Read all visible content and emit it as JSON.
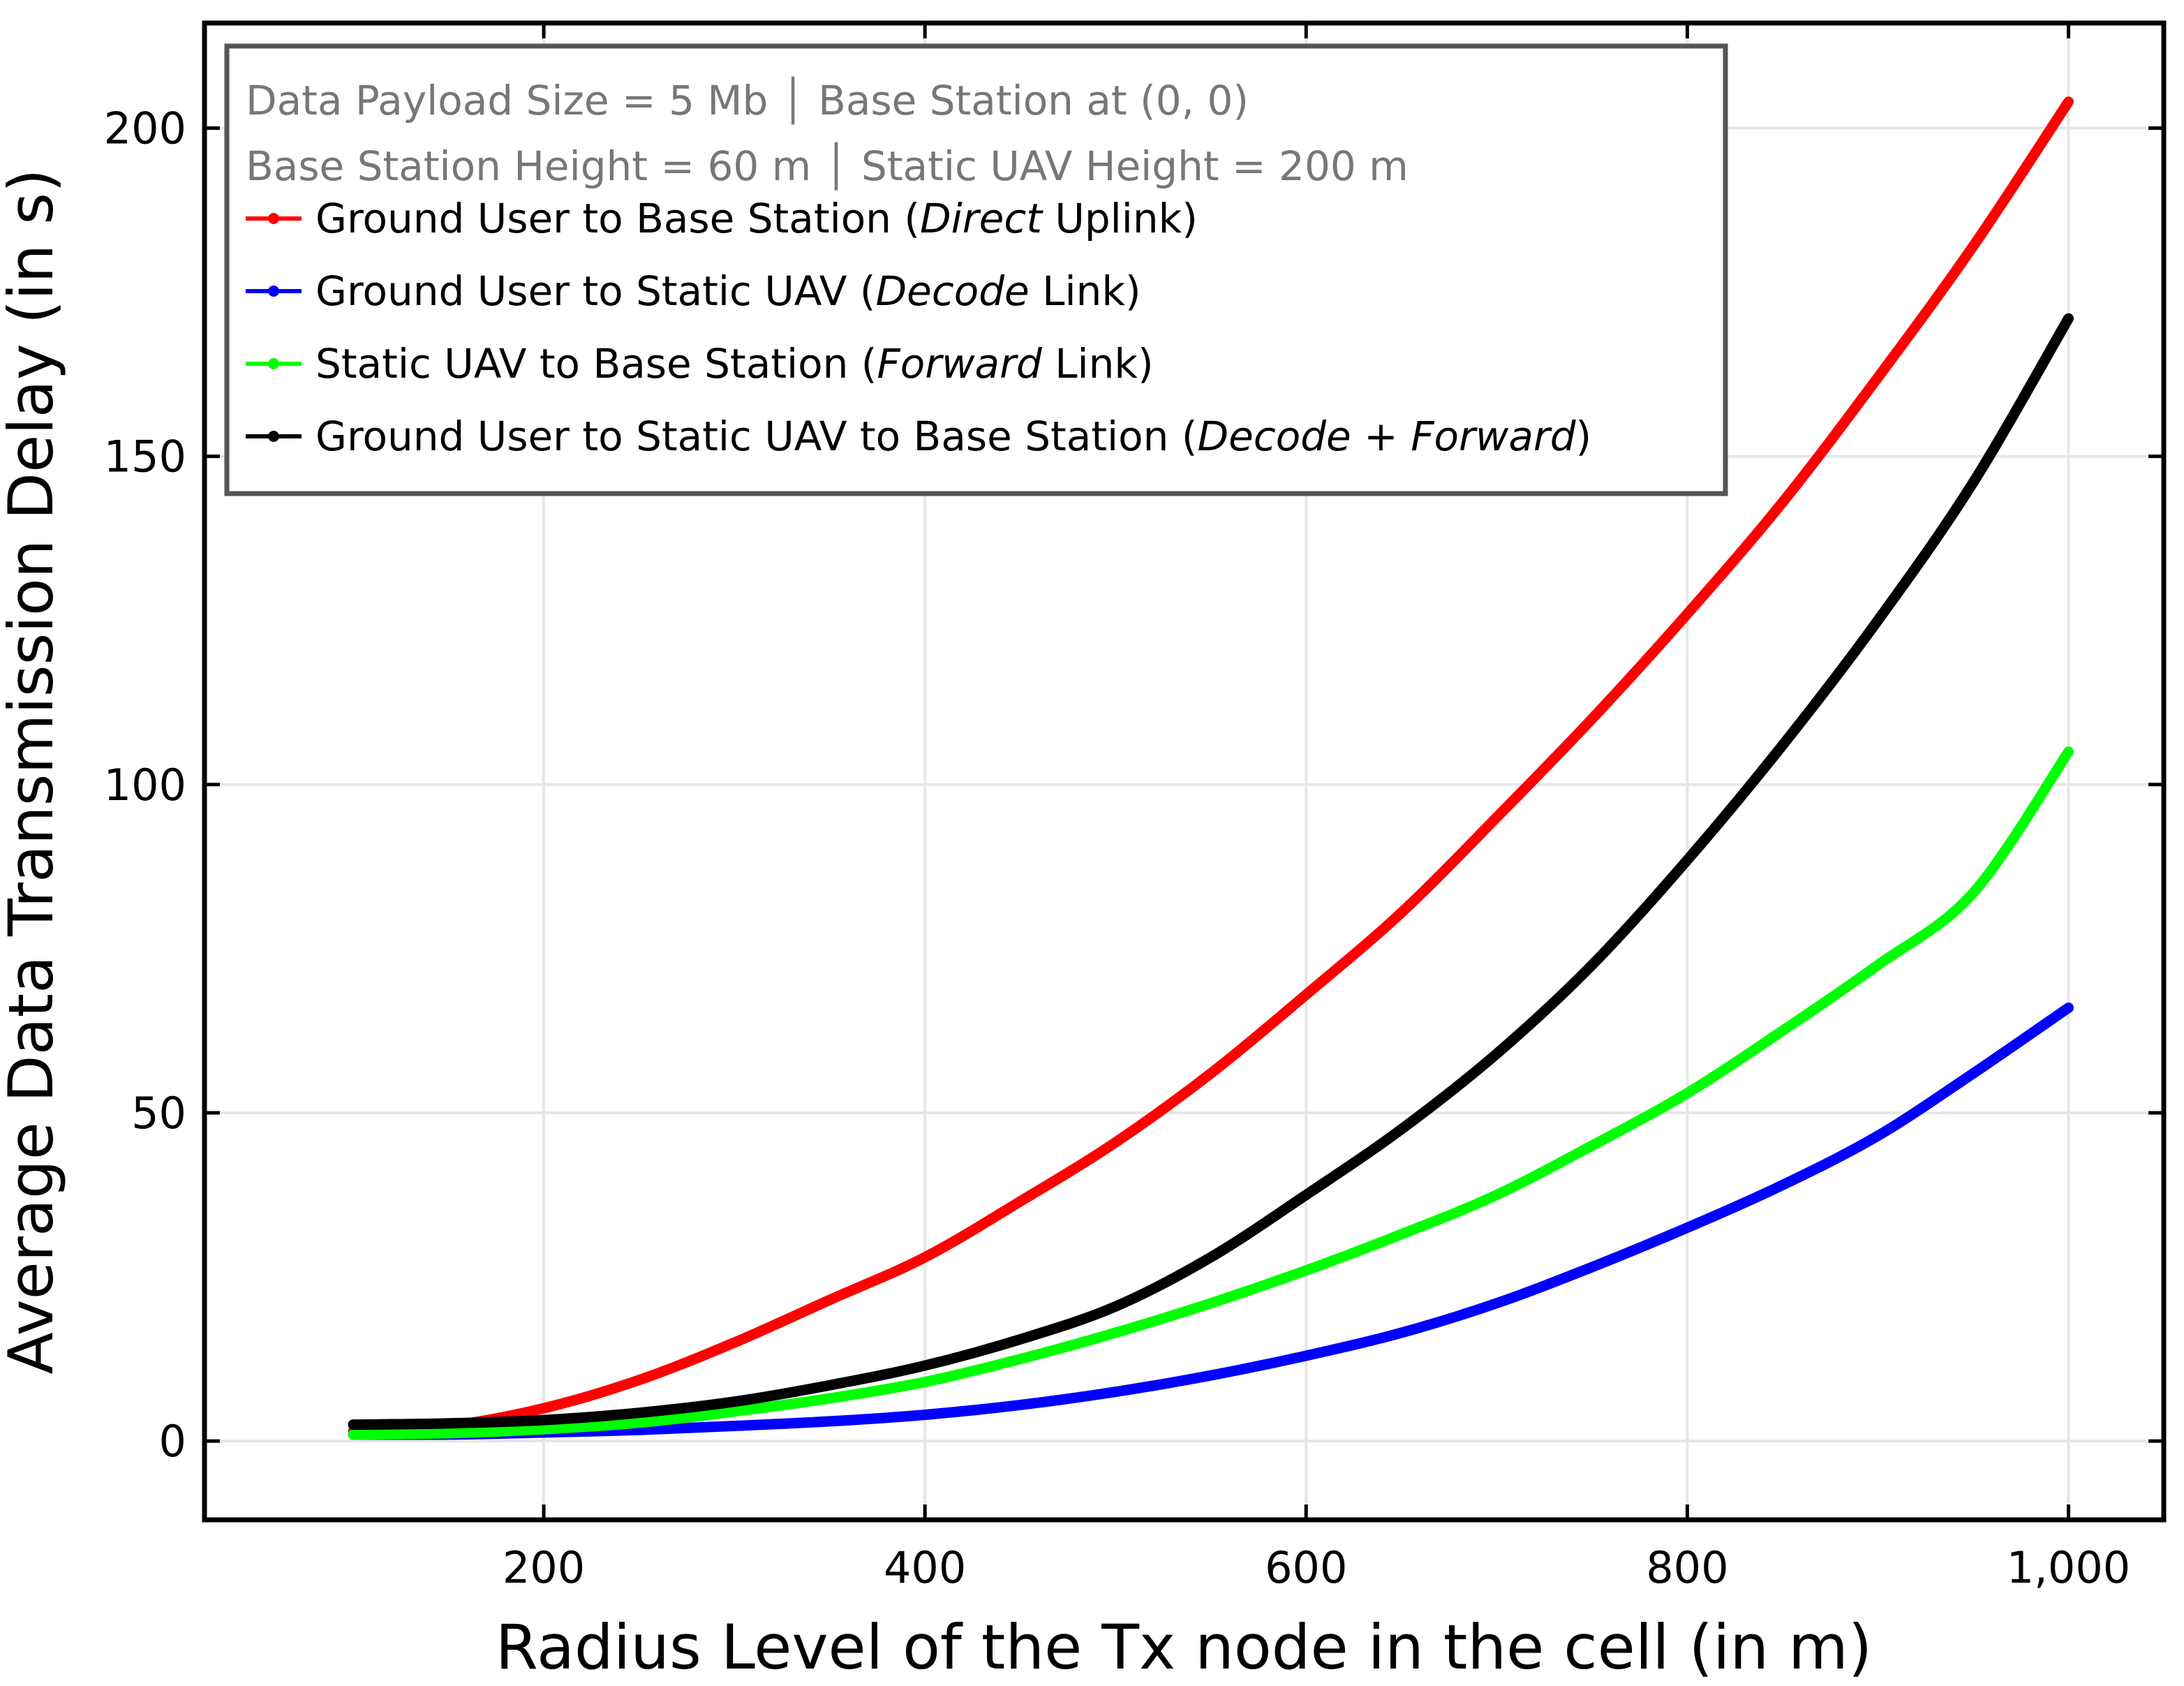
{
  "chart_data": {
    "type": "line",
    "xlabel": "Radius Level of the Tx node in the cell (in m)",
    "ylabel": "Average Data Transmission Delay (in s)",
    "xlim": [
      22,
      1050
    ],
    "ylim": [
      -12,
      216
    ],
    "xticks": [
      200,
      400,
      600,
      800,
      1000
    ],
    "xtick_labels": [
      "200",
      "400",
      "600",
      "800",
      "1,000"
    ],
    "yticks": [
      0,
      50,
      100,
      150,
      200
    ],
    "ytick_labels": [
      "0",
      "50",
      "100",
      "150",
      "200"
    ],
    "grid": true,
    "legend_position": "top-left",
    "legend_notes": [
      "Data Payload Size = 5 Mb │ Base Station at (0, 0)",
      "Base Station Height = 60 m │ Static UAV Height = 200 m"
    ],
    "x": [
      100,
      150,
      200,
      250,
      300,
      350,
      400,
      450,
      500,
      550,
      600,
      650,
      700,
      750,
      800,
      850,
      900,
      950,
      1000
    ],
    "series": [
      {
        "name_parts": [
          {
            "t": "Ground User to Base Station ("
          },
          {
            "t": "Direct",
            "i": true
          },
          {
            "t": " Uplink)"
          }
        ],
        "color": "#ff0000",
        "values": [
          1.5,
          2.3,
          5,
          9.3,
          15,
          21.5,
          28,
          36.5,
          45.5,
          56,
          68,
          80.5,
          95,
          110,
          126,
          143,
          162,
          182,
          204
        ]
      },
      {
        "name_parts": [
          {
            "t": "Ground User to Static UAV ("
          },
          {
            "t": "Decode",
            "i": true
          },
          {
            "t": " Link)"
          }
        ],
        "color": "#0000ff",
        "values": [
          1,
          1,
          1.3,
          1.7,
          2.3,
          3,
          4,
          5.5,
          7.5,
          10,
          13,
          16.5,
          21,
          26.5,
          32.5,
          39,
          46.5,
          56,
          66
        ]
      },
      {
        "name_parts": [
          {
            "t": "Static UAV to Base Station ("
          },
          {
            "t": "Forward",
            "i": true
          },
          {
            "t": " Link)"
          }
        ],
        "color": "#00ff00",
        "values": [
          1,
          1.2,
          1.8,
          2.8,
          4.5,
          6.5,
          9,
          12.5,
          16.5,
          21,
          26,
          31.5,
          37.5,
          45,
          53,
          62.5,
          72.5,
          83.5,
          105
        ]
      },
      {
        "name_parts": [
          {
            "t": "Ground User to Static UAV to Base Station ("
          },
          {
            "t": "Decode",
            "i": true
          },
          {
            "t": " + "
          },
          {
            "t": "Forward",
            "i": true
          },
          {
            "t": ")"
          }
        ],
        "color": "#000000",
        "values": [
          2.5,
          2.7,
          3.2,
          4.3,
          6,
          8.5,
          11.5,
          15.5,
          20.5,
          28,
          37.5,
          47.5,
          59,
          72.5,
          88.5,
          106,
          125,
          146,
          171
        ]
      }
    ]
  }
}
